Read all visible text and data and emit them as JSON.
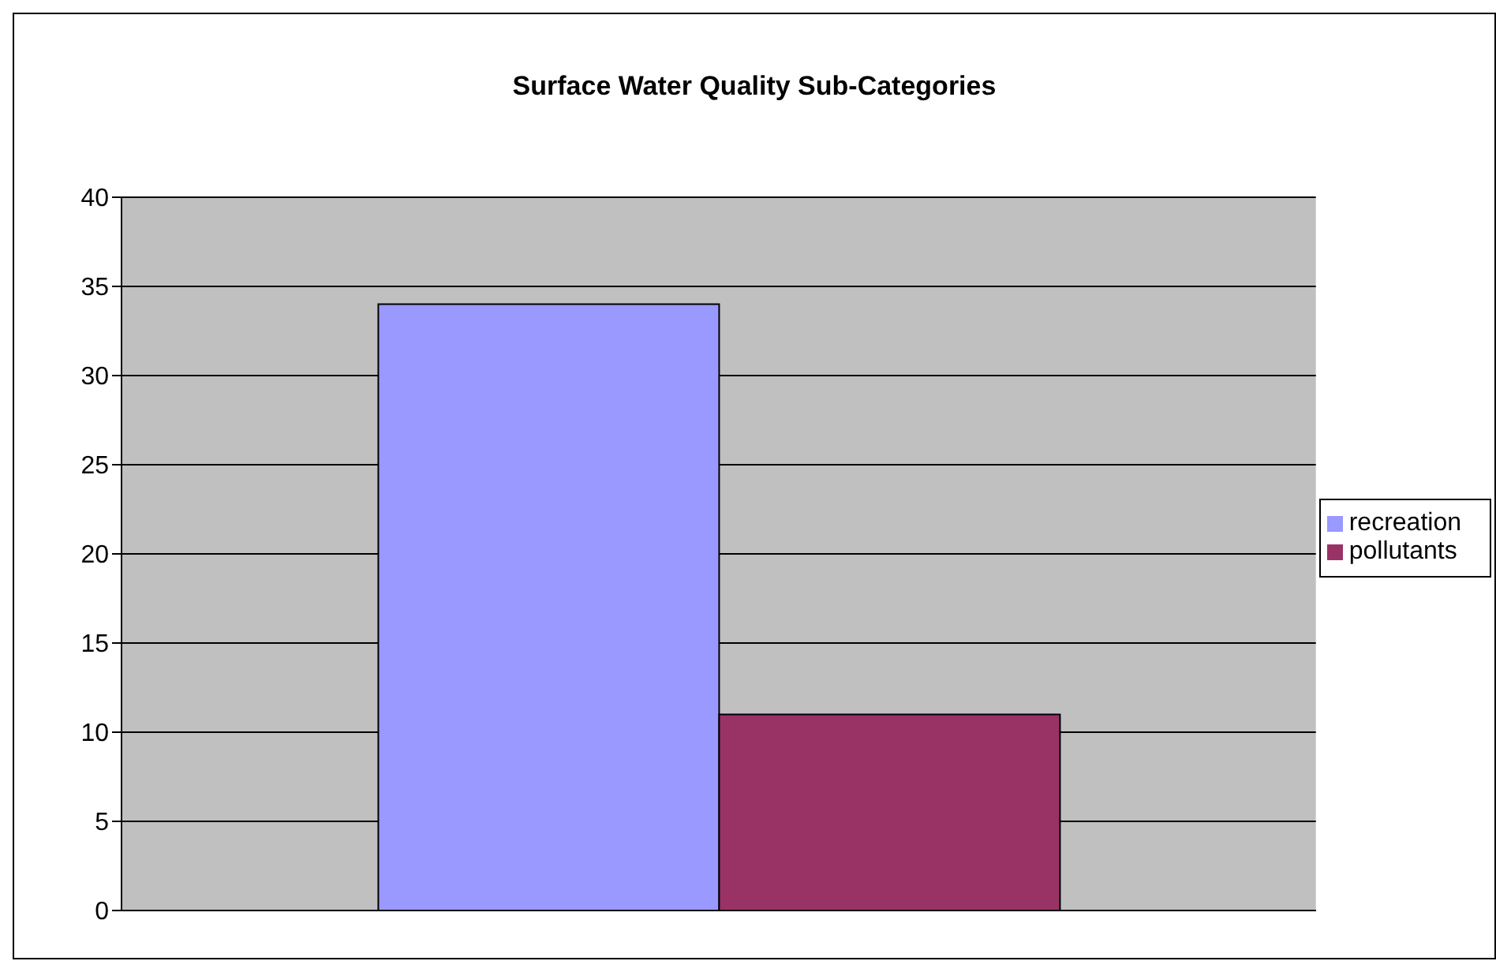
{
  "chart_data": {
    "type": "bar",
    "title": "Surface Water Quality Sub-Categories",
    "categories": [
      null
    ],
    "series": [
      {
        "name": "recreation",
        "color": "#9999ff",
        "values": [
          34
        ]
      },
      {
        "name": "pollutants",
        "color": "#993366",
        "values": [
          11
        ]
      }
    ],
    "ylim": [
      0,
      40
    ],
    "yticks": [
      0,
      5,
      10,
      15,
      20,
      25,
      30,
      35,
      40
    ],
    "grid": "y",
    "legend": "right"
  }
}
